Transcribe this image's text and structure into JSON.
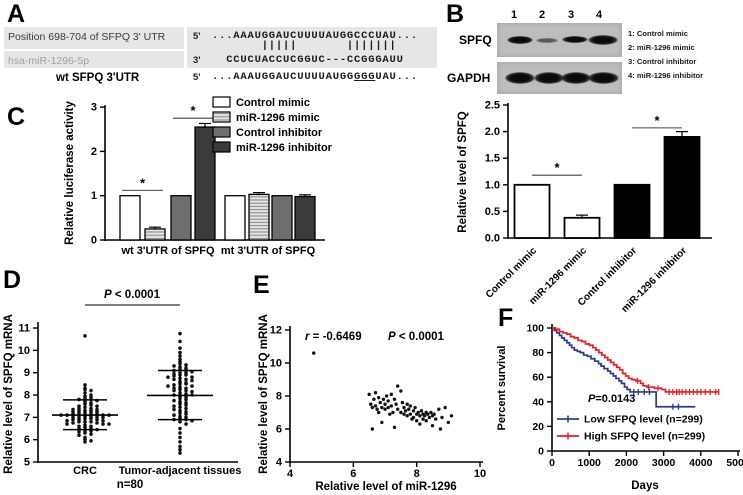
{
  "panels": {
    "a": {
      "label": "A",
      "row1_label": "Position 698-704 of SFPQ 3' UTR",
      "row2_label": "hsa-miR-1296-5p",
      "row3_label": "wt SFPQ 3'UTR",
      "row1_end": "5'",
      "row2_end": "3'",
      "row3_end": "5'",
      "seq_target": "...AAAUGGAUCUUUUAUGGCCCUAU...",
      "seq_pipes": "       |||||       |||||||",
      "seq_mirna": "  CCUCUACCUCGGUC---CCGGGAUU",
      "seq_wt_pre": "...AAAUGGAUCUUUUAUGG",
      "seq_wt_underlined": "GGG",
      "seq_wt_post": "UAU..."
    },
    "b": {
      "label": "B",
      "blot": {
        "lanes": [
          "1",
          "2",
          "3",
          "4"
        ],
        "row1_label": "SPFQ",
        "row2_label": "GAPDH",
        "legend": [
          "1: Control mimic",
          "2: miR-1296 mimic",
          "3: Control inhibitor",
          "4: miR-1296 inhibitor"
        ],
        "spfq_band_intensity": [
          0.85,
          0.45,
          0.75,
          1.0
        ],
        "gapdh_band_intensity": [
          1.0,
          1.0,
          1.0,
          1.0
        ]
      }
    },
    "c": {
      "label": "C"
    },
    "d": {
      "label": "D"
    },
    "e": {
      "label": "E"
    },
    "f": {
      "label": "F"
    }
  },
  "chart_data": [
    {
      "panel": "B",
      "type": "bar",
      "ylabel": "Relative level of SPFQ",
      "ylim": [
        0,
        2.5
      ],
      "yticks": [
        "0.0",
        "0.5",
        "1.0",
        "1.5",
        "2.0",
        "2.5"
      ],
      "categories": [
        "Control mimic",
        "miR-1296 mimic",
        "Control inhibitor",
        "miR-1296 inhibitor"
      ],
      "values": [
        1.0,
        0.38,
        1.0,
        1.9
      ],
      "errors": [
        0,
        0.05,
        0,
        0.1
      ],
      "bar_fills": [
        "#ffffff",
        "#ffffff",
        "#000000",
        "#000000"
      ],
      "significance": [
        {
          "from": 0,
          "to": 1,
          "y": 1.18,
          "label": "*"
        },
        {
          "from": 2,
          "to": 3,
          "y": 2.07,
          "label": "*"
        }
      ]
    },
    {
      "panel": "C",
      "type": "grouped_bar",
      "ylabel": "Relative luciferase activity",
      "ylim": [
        0,
        3
      ],
      "yticks": [
        "0",
        "1",
        "2",
        "3"
      ],
      "groups": [
        "wt 3'UTR of SPFQ",
        "mt 3'UTR of SPFQ"
      ],
      "series": [
        {
          "name": "Control mimic",
          "fill": "#ffffff",
          "pattern": "none",
          "values": [
            1.0,
            1.0
          ],
          "errors": [
            0,
            0
          ]
        },
        {
          "name": "miR-1296 mimic",
          "fill": "#dedede",
          "pattern": "hstripes",
          "values": [
            0.25,
            1.03
          ],
          "errors": [
            0.04,
            0.04
          ]
        },
        {
          "name": "Control inhibitor",
          "fill": "#6e6e6e",
          "pattern": "none",
          "values": [
            1.0,
            1.0
          ],
          "errors": [
            0,
            0
          ]
        },
        {
          "name": "miR-1296 inhibitor",
          "fill": "#3b3b3b",
          "pattern": "none",
          "values": [
            2.55,
            0.98
          ],
          "errors": [
            0.08,
            0.04
          ]
        }
      ],
      "legend_position": "top-right",
      "significance": [
        {
          "group": 0,
          "from": 0,
          "to": 1,
          "y": 1.12,
          "label": "*"
        },
        {
          "group": 0,
          "from": 2,
          "to": 3,
          "y": 2.75,
          "label": "*"
        }
      ]
    },
    {
      "panel": "D",
      "type": "dotplot",
      "ylabel": "Relative level of SPFQ mRNA",
      "ylim": [
        5,
        11
      ],
      "yticks": [
        5,
        6,
        7,
        8,
        9,
        10,
        11
      ],
      "annotation": {
        "text": "P < 0.0001",
        "italic_first": true
      },
      "note": "n=80",
      "groups": [
        {
          "name": "CRC",
          "median": 7.1,
          "err_low": 6.45,
          "err_high": 7.78,
          "points": [
            10.65,
            8.45,
            8.3,
            8.25,
            8.2,
            8.1,
            8.0,
            7.95,
            7.9,
            7.85,
            7.8,
            7.8,
            7.75,
            7.7,
            7.65,
            7.6,
            7.55,
            7.5,
            7.5,
            7.45,
            7.4,
            7.4,
            7.35,
            7.35,
            7.3,
            7.3,
            7.3,
            7.25,
            7.25,
            7.2,
            7.2,
            7.2,
            7.15,
            7.15,
            7.1,
            7.1,
            7.1,
            7.1,
            7.05,
            7.05,
            7.0,
            7.0,
            7.0,
            7.0,
            6.95,
            6.95,
            6.9,
            6.9,
            6.9,
            6.85,
            6.85,
            6.8,
            6.8,
            6.8,
            6.75,
            6.75,
            6.7,
            6.7,
            6.7,
            6.65,
            6.6,
            6.6,
            6.55,
            6.5,
            6.5,
            6.45,
            6.4,
            6.4,
            6.35,
            6.3,
            6.25,
            6.2,
            6.1,
            6.0,
            5.95,
            5.9
          ]
        },
        {
          "name": "Tumor-adjacent tissues",
          "median": 7.98,
          "err_low": 6.9,
          "err_high": 9.1,
          "points": [
            10.75,
            10.4,
            10.1,
            9.9,
            9.75,
            9.6,
            9.5,
            9.4,
            9.35,
            9.3,
            9.25,
            9.2,
            9.15,
            9.1,
            9.1,
            9.05,
            9.0,
            9.0,
            8.95,
            8.9,
            8.9,
            8.85,
            8.8,
            8.8,
            8.75,
            8.7,
            8.7,
            8.65,
            8.6,
            8.55,
            8.5,
            8.5,
            8.45,
            8.4,
            8.4,
            8.35,
            8.3,
            8.3,
            8.25,
            8.2,
            8.2,
            8.15,
            8.1,
            8.05,
            8.0,
            8.0,
            7.95,
            7.9,
            7.85,
            7.8,
            7.75,
            7.7,
            7.65,
            7.6,
            7.55,
            7.5,
            7.45,
            7.4,
            7.35,
            7.3,
            7.25,
            7.2,
            7.15,
            7.1,
            7.05,
            7.0,
            6.95,
            6.9,
            6.9,
            6.85,
            6.8,
            6.7,
            6.5,
            6.3,
            6.1,
            5.9,
            5.7,
            5.55,
            5.4
          ]
        }
      ]
    },
    {
      "panel": "E",
      "type": "scatter",
      "xlabel": "Relative level of miR-1296",
      "ylabel": "Relative level of SPFQ mRNA",
      "xlim": [
        4,
        10
      ],
      "xticks": [
        4,
        6,
        8,
        10
      ],
      "ylim": [
        4,
        12
      ],
      "yticks": [
        4,
        6,
        8,
        10,
        12
      ],
      "annotations": [
        {
          "text": "r = -0.6469",
          "italic_first": true
        },
        {
          "text": "P < 0.0001",
          "italic_first": true
        }
      ],
      "points": [
        [
          4.75,
          10.6
        ],
        [
          6.5,
          8.1
        ],
        [
          6.55,
          7.5
        ],
        [
          6.6,
          7.3
        ],
        [
          6.6,
          6.0
        ],
        [
          6.65,
          7.8
        ],
        [
          6.7,
          8.2
        ],
        [
          6.7,
          7.4
        ],
        [
          6.75,
          7.2
        ],
        [
          6.8,
          7.9
        ],
        [
          6.8,
          7.0
        ],
        [
          6.85,
          7.6
        ],
        [
          6.9,
          7.3
        ],
        [
          6.9,
          6.4
        ],
        [
          6.95,
          7.8
        ],
        [
          7.0,
          7.5
        ],
        [
          7.0,
          7.2
        ],
        [
          7.05,
          8.0
        ],
        [
          7.1,
          7.7
        ],
        [
          7.1,
          7.3
        ],
        [
          7.15,
          6.9
        ],
        [
          7.2,
          8.1
        ],
        [
          7.2,
          7.4
        ],
        [
          7.25,
          7.0
        ],
        [
          7.3,
          7.8
        ],
        [
          7.3,
          6.1
        ],
        [
          7.35,
          7.5
        ],
        [
          7.4,
          8.6
        ],
        [
          7.4,
          7.2
        ],
        [
          7.5,
          8.3
        ],
        [
          7.5,
          7.0
        ],
        [
          7.55,
          7.6
        ],
        [
          7.6,
          7.3
        ],
        [
          7.6,
          6.9
        ],
        [
          7.65,
          7.1
        ],
        [
          7.7,
          7.5
        ],
        [
          7.7,
          6.8
        ],
        [
          7.75,
          7.2
        ],
        [
          7.8,
          7.4
        ],
        [
          7.8,
          6.9
        ],
        [
          7.85,
          6.6
        ],
        [
          7.9,
          7.1
        ],
        [
          7.9,
          6.7
        ],
        [
          7.95,
          7.3
        ],
        [
          8.0,
          6.9
        ],
        [
          8.0,
          6.5
        ],
        [
          8.05,
          7.0
        ],
        [
          8.1,
          6.8
        ],
        [
          8.1,
          6.3
        ],
        [
          8.15,
          7.1
        ],
        [
          8.2,
          6.9
        ],
        [
          8.2,
          6.6
        ],
        [
          8.25,
          6.8
        ],
        [
          8.3,
          7.0
        ],
        [
          8.3,
          6.5
        ],
        [
          8.35,
          6.9
        ],
        [
          8.4,
          6.7
        ],
        [
          8.45,
          7.0
        ],
        [
          8.5,
          6.8
        ],
        [
          8.5,
          6.2
        ],
        [
          8.55,
          6.9
        ],
        [
          8.6,
          6.6
        ],
        [
          8.7,
          7.2
        ],
        [
          8.75,
          6.0
        ],
        [
          8.8,
          6.7
        ],
        [
          8.9,
          7.3
        ],
        [
          9.0,
          6.4
        ],
        [
          9.1,
          6.8
        ]
      ]
    },
    {
      "panel": "F",
      "type": "km",
      "xlabel": "Days",
      "ylabel": "Percent survival",
      "xlim": [
        0,
        5000
      ],
      "xticks": [
        0,
        1000,
        2000,
        3000,
        4000,
        5000
      ],
      "ylim": [
        0,
        100
      ],
      "yticks": [
        0,
        20,
        40,
        60,
        80,
        100
      ],
      "annotation": "P=0.0143",
      "series": [
        {
          "name": "Low SFPQ level (n=299)",
          "color": "#2b3990",
          "steps": [
            [
              0,
              100
            ],
            [
              60,
              98
            ],
            [
              130,
              96
            ],
            [
              200,
              94
            ],
            [
              260,
              92
            ],
            [
              330,
              90
            ],
            [
              400,
              88
            ],
            [
              470,
              86
            ],
            [
              530,
              84
            ],
            [
              600,
              82
            ],
            [
              680,
              81
            ],
            [
              760,
              80
            ],
            [
              850,
              78
            ],
            [
              950,
              77
            ],
            [
              1050,
              75
            ],
            [
              1150,
              73
            ],
            [
              1250,
              71
            ],
            [
              1320,
              69
            ],
            [
              1400,
              67
            ],
            [
              1500,
              65
            ],
            [
              1570,
              63
            ],
            [
              1650,
              61
            ],
            [
              1720,
              59
            ],
            [
              1800,
              57
            ],
            [
              1870,
              55
            ],
            [
              1950,
              52
            ],
            [
              2020,
              50
            ],
            [
              2100,
              48
            ],
            [
              2800,
              36
            ],
            [
              3850,
              36
            ]
          ],
          "censors": [
            [
              2200,
              48
            ],
            [
              2320,
              48
            ],
            [
              2480,
              48
            ],
            [
              2620,
              48
            ],
            [
              3250,
              36
            ],
            [
              3400,
              36
            ]
          ]
        },
        {
          "name": "High SFPQ level (n=299)",
          "color": "#ec1c24",
          "steps": [
            [
              0,
              100
            ],
            [
              100,
              99
            ],
            [
              200,
              97
            ],
            [
              300,
              96
            ],
            [
              400,
              95
            ],
            [
              500,
              93
            ],
            [
              600,
              92
            ],
            [
              700,
              90
            ],
            [
              800,
              89
            ],
            [
              900,
              87
            ],
            [
              1000,
              86
            ],
            [
              1100,
              84
            ],
            [
              1180,
              82
            ],
            [
              1260,
              80
            ],
            [
              1340,
              78
            ],
            [
              1420,
              76
            ],
            [
              1500,
              74
            ],
            [
              1580,
              72
            ],
            [
              1660,
              70
            ],
            [
              1740,
              68
            ],
            [
              1820,
              66
            ],
            [
              1900,
              63
            ],
            [
              1980,
              61
            ],
            [
              2060,
              59
            ],
            [
              2150,
              58
            ],
            [
              2250,
              57
            ],
            [
              2380,
              55
            ],
            [
              2450,
              53
            ],
            [
              2550,
              52
            ],
            [
              2750,
              51
            ],
            [
              2950,
              50
            ],
            [
              3050,
              48
            ],
            [
              4500,
              48
            ]
          ],
          "censors": [
            [
              2300,
              57
            ],
            [
              2600,
              52
            ],
            [
              2850,
              51
            ],
            [
              3150,
              48
            ],
            [
              3250,
              48
            ],
            [
              3350,
              48
            ],
            [
              3420,
              48
            ],
            [
              3500,
              48
            ],
            [
              3600,
              48
            ],
            [
              3700,
              48
            ],
            [
              3800,
              48
            ],
            [
              3900,
              48
            ],
            [
              4000,
              48
            ],
            [
              4120,
              48
            ],
            [
              4250,
              48
            ],
            [
              4400,
              48
            ],
            [
              4480,
              48
            ]
          ]
        }
      ]
    }
  ]
}
